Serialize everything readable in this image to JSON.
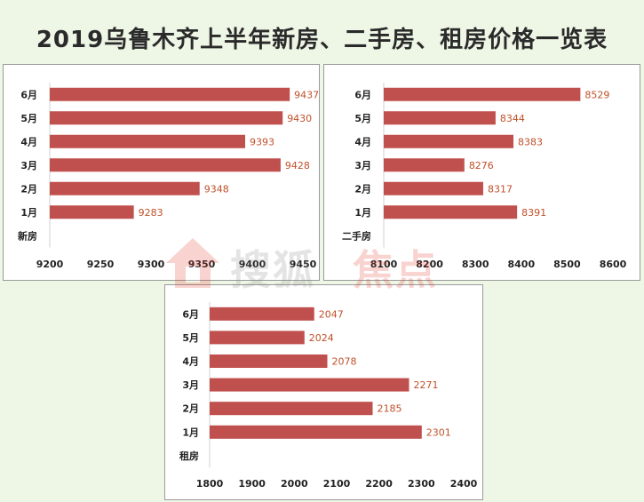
{
  "title": "2019乌鲁木齐上半年新房、二手房、租房价格一览表",
  "colors": {
    "bar": "#c0504d",
    "label": "#c0502a",
    "axis_text": "#222222",
    "panel_border": "#9a9a9a"
  },
  "watermark": {
    "text_a": "搜狐",
    "text_b": "焦点"
  },
  "chart_data": [
    {
      "type": "bar",
      "orientation": "horizontal",
      "category_axis_title": "新房",
      "categories": [
        "1月",
        "2月",
        "3月",
        "4月",
        "5月",
        "6月"
      ],
      "values": [
        9283,
        9348,
        9428,
        9393,
        9430,
        9437
      ],
      "xlim": [
        9200,
        9450
      ],
      "xticks": [
        9200,
        9250,
        9300,
        9350,
        9400,
        9450
      ],
      "grid": false,
      "data_labels": true
    },
    {
      "type": "bar",
      "orientation": "horizontal",
      "category_axis_title": "二手房",
      "categories": [
        "1月",
        "2月",
        "3月",
        "4月",
        "5月",
        "6月"
      ],
      "values": [
        8391,
        8317,
        8276,
        8383,
        8344,
        8529
      ],
      "xlim": [
        8100,
        8600
      ],
      "xticks": [
        8100,
        8200,
        8300,
        8400,
        8500,
        8600
      ],
      "grid": false,
      "data_labels": true
    },
    {
      "type": "bar",
      "orientation": "horizontal",
      "category_axis_title": "租房",
      "categories": [
        "1月",
        "2月",
        "3月",
        "4月",
        "5月",
        "6月"
      ],
      "values": [
        2301,
        2185,
        2271,
        2078,
        2024,
        2047
      ],
      "xlim": [
        1800,
        2400
      ],
      "xticks": [
        1800,
        1900,
        2000,
        2100,
        2200,
        2300,
        2400
      ],
      "grid": false,
      "data_labels": true
    }
  ]
}
